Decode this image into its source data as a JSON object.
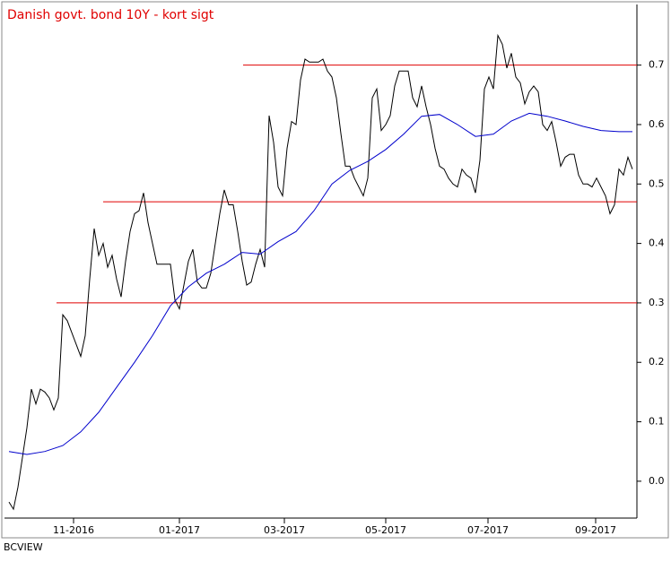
{
  "chart_data": {
    "type": "line",
    "title": "Danish govt. bond 10Y - kort sigt",
    "footer": "BCVIEW",
    "xlim": [
      0,
      141
    ],
    "ylim": [
      -0.062,
      0.802
    ],
    "xticks": [
      {
        "value": 15.4,
        "label": "11-2016"
      },
      {
        "value": 39,
        "label": "01-2017"
      },
      {
        "value": 62.4,
        "label": "03-2017"
      },
      {
        "value": 85,
        "label": "05-2017"
      },
      {
        "value": 107.8,
        "label": "07-2017"
      },
      {
        "value": 131.8,
        "label": "09-2017"
      }
    ],
    "yticks": [
      {
        "value": 0,
        "label": "0.0"
      },
      0.1,
      0.2,
      0.3,
      0.4,
      0.5,
      0.6,
      0.7
    ],
    "hlines": [
      {
        "value": 0.7,
        "x_start": 53.2,
        "color": "#e00000"
      },
      {
        "value": 0.47,
        "x_start": 22,
        "color": "#e00000"
      },
      {
        "value": 0.3,
        "x_start": 11.6,
        "color": "#e00000"
      }
    ],
    "series": [
      {
        "color": "#000000",
        "x": [
          1,
          2,
          3,
          4,
          5,
          6,
          7,
          8,
          9,
          10,
          11,
          12,
          13,
          14,
          15,
          16,
          17,
          18,
          19,
          20,
          21,
          22,
          23,
          24,
          25,
          26,
          27,
          28,
          29,
          30,
          31,
          32,
          33,
          34,
          35,
          36,
          37,
          38,
          39,
          40,
          41,
          42,
          43,
          44,
          45,
          46,
          47,
          48,
          49,
          50,
          51,
          52,
          53,
          54,
          55,
          56,
          57,
          58,
          59,
          60,
          61,
          62,
          63,
          64,
          65,
          66,
          67,
          68,
          69,
          70,
          71,
          72,
          73,
          74,
          75,
          76,
          77,
          78,
          79,
          80,
          81,
          82,
          83,
          84,
          85,
          86,
          87,
          88,
          89,
          90,
          91,
          92,
          93,
          94,
          95,
          96,
          97,
          98,
          99,
          100,
          101,
          102,
          103,
          104,
          105,
          106,
          107,
          108,
          109,
          110,
          111,
          112,
          113,
          114,
          115,
          116,
          117,
          118,
          119,
          120,
          121,
          122,
          123,
          124,
          125,
          126,
          127,
          128,
          129,
          130,
          131,
          132,
          133,
          134,
          135,
          136,
          137,
          138,
          139,
          140
        ],
        "values": [
          -0.035,
          -0.047,
          -0.01,
          0.04,
          0.09,
          0.155,
          0.13,
          0.155,
          0.15,
          0.14,
          0.12,
          0.14,
          0.28,
          0.27,
          0.25,
          0.23,
          0.21,
          0.245,
          0.34,
          0.425,
          0.38,
          0.4,
          0.36,
          0.38,
          0.34,
          0.31,
          0.37,
          0.42,
          0.45,
          0.455,
          0.485,
          0.435,
          0.4,
          0.365,
          0.365,
          0.365,
          0.365,
          0.305,
          0.29,
          0.33,
          0.37,
          0.39,
          0.335,
          0.325,
          0.325,
          0.35,
          0.4,
          0.45,
          0.49,
          0.465,
          0.465,
          0.42,
          0.37,
          0.33,
          0.335,
          0.365,
          0.39,
          0.36,
          0.615,
          0.57,
          0.495,
          0.48,
          0.56,
          0.605,
          0.6,
          0.675,
          0.71,
          0.705,
          0.705,
          0.705,
          0.71,
          0.69,
          0.68,
          0.645,
          0.585,
          0.53,
          0.53,
          0.51,
          0.495,
          0.48,
          0.51,
          0.645,
          0.66,
          0.59,
          0.6,
          0.615,
          0.665,
          0.69,
          0.69,
          0.69,
          0.645,
          0.63,
          0.665,
          0.63,
          0.6,
          0.56,
          0.53,
          0.525,
          0.51,
          0.5,
          0.495,
          0.525,
          0.515,
          0.51,
          0.485,
          0.54,
          0.66,
          0.68,
          0.66,
          0.75,
          0.735,
          0.695,
          0.72,
          0.68,
          0.67,
          0.635,
          0.655,
          0.665,
          0.655,
          0.6,
          0.59,
          0.605,
          0.57,
          0.53,
          0.545,
          0.55,
          0.55,
          0.515,
          0.5,
          0.5,
          0.495,
          0.51,
          0.495,
          0.48,
          0.45,
          0.465,
          0.525,
          0.515,
          0.545,
          0.525
        ]
      },
      {
        "color": "#0000cc",
        "x": [
          1,
          5,
          9,
          13,
          17,
          21,
          25,
          29,
          33,
          37,
          41,
          45,
          49,
          53,
          57,
          61,
          65,
          69,
          73,
          77,
          81,
          85,
          89,
          93,
          97,
          101,
          105,
          109,
          113,
          117,
          121,
          125,
          129,
          133,
          137,
          140
        ],
        "values": [
          0.05,
          0.045,
          0.05,
          0.06,
          0.083,
          0.116,
          0.158,
          0.2,
          0.245,
          0.295,
          0.327,
          0.35,
          0.365,
          0.385,
          0.382,
          0.403,
          0.42,
          0.455,
          0.5,
          0.523,
          0.538,
          0.558,
          0.584,
          0.614,
          0.617,
          0.6,
          0.58,
          0.584,
          0.606,
          0.619,
          0.614,
          0.606,
          0.597,
          0.59,
          0.588,
          0.588
        ]
      }
    ]
  }
}
